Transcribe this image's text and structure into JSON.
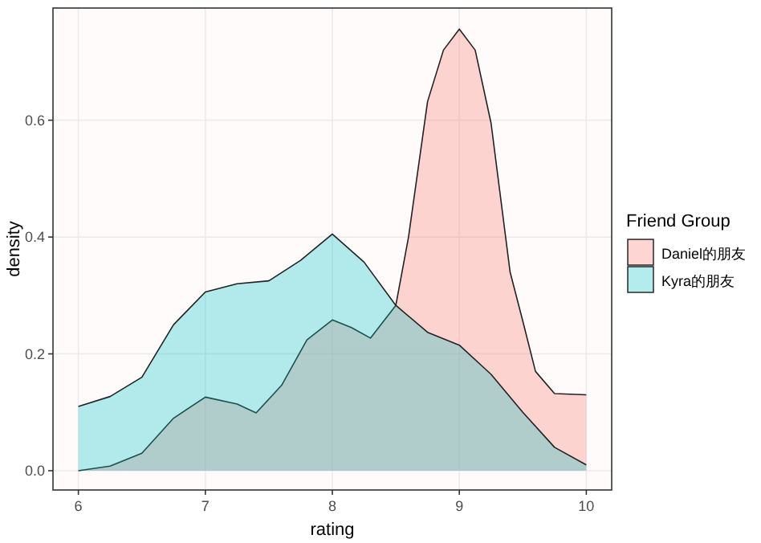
{
  "chart_data": {
    "type": "area",
    "xlabel": "rating",
    "ylabel": "density",
    "legend_title": "Friend Group",
    "legend": "right",
    "grid": true,
    "xlim": [
      5.8,
      10.2
    ],
    "ylim": [
      -0.033,
      0.792
    ],
    "xticks": [
      6,
      7,
      8,
      9,
      10
    ],
    "yticks": [
      {
        "value": 0,
        "label": "0.0"
      },
      0.2,
      0.4,
      0.6
    ],
    "series": [
      {
        "name": "Daniel的朋友",
        "color": "#f8766d",
        "x": [
          6,
          6.25,
          6.5,
          6.75,
          7,
          7.25,
          7.4,
          7.6,
          7.8,
          8,
          8.15,
          8.3,
          8.5,
          8.6,
          8.75,
          8.875,
          9,
          9.125,
          9.25,
          9.4,
          9.5,
          9.6,
          9.75,
          10
        ],
        "values": [
          0,
          0.008,
          0.03,
          0.09,
          0.126,
          0.114,
          0.099,
          0.146,
          0.224,
          0.258,
          0.245,
          0.227,
          0.283,
          0.4,
          0.632,
          0.72,
          0.756,
          0.72,
          0.595,
          0.34,
          0.256,
          0.17,
          0.132,
          0.13
        ]
      },
      {
        "name": "Kyra的朋友",
        "color": "#00bfc4",
        "x": [
          6,
          6.25,
          6.5,
          6.75,
          7,
          7.25,
          7.5,
          7.75,
          8,
          8.25,
          8.5,
          8.75,
          9,
          9.25,
          9.5,
          9.75,
          10
        ],
        "values": [
          0.11,
          0.127,
          0.16,
          0.25,
          0.306,
          0.32,
          0.325,
          0.36,
          0.405,
          0.357,
          0.283,
          0.237,
          0.215,
          0.165,
          0.1,
          0.04,
          0.01
        ]
      }
    ]
  }
}
